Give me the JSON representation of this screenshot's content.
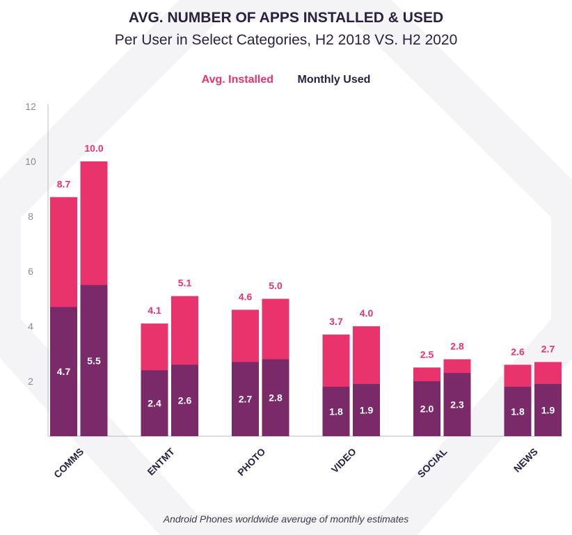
{
  "chart_data": {
    "type": "bar",
    "stacked": "overlay",
    "title": "AVG. NUMBER OF APPS INSTALLED & USED",
    "subtitle": "Per User in Select Categories, H2 2018 VS. H2 2020",
    "categories": [
      "COMMS",
      "ENTMT",
      "PHOTO",
      "VIDEO",
      "SOCIAL",
      "NEWS"
    ],
    "periods": [
      "H2 2018",
      "H2 2020"
    ],
    "series": [
      {
        "name": "Avg. Installed",
        "color": "#e8336d",
        "values": [
          [
            8.7,
            10.0
          ],
          [
            4.1,
            5.1
          ],
          [
            4.6,
            5.0
          ],
          [
            3.7,
            4.0
          ],
          [
            2.5,
            2.8
          ],
          [
            2.6,
            2.7
          ]
        ]
      },
      {
        "name": "Monthly Used",
        "color": "#7a2a68",
        "values": [
          [
            4.7,
            5.5
          ],
          [
            2.4,
            2.6
          ],
          [
            2.7,
            2.8
          ],
          [
            1.8,
            1.9
          ],
          [
            2.0,
            2.3
          ],
          [
            1.8,
            1.9
          ]
        ]
      }
    ],
    "yticks": [
      2,
      4,
      6,
      8,
      10,
      12
    ],
    "ylim": [
      0,
      12
    ],
    "grid": false,
    "legend_position": "top-center",
    "xlabel": "",
    "ylabel": "",
    "footnote": "Android Phones worldwide averuge of monthly estimates"
  }
}
